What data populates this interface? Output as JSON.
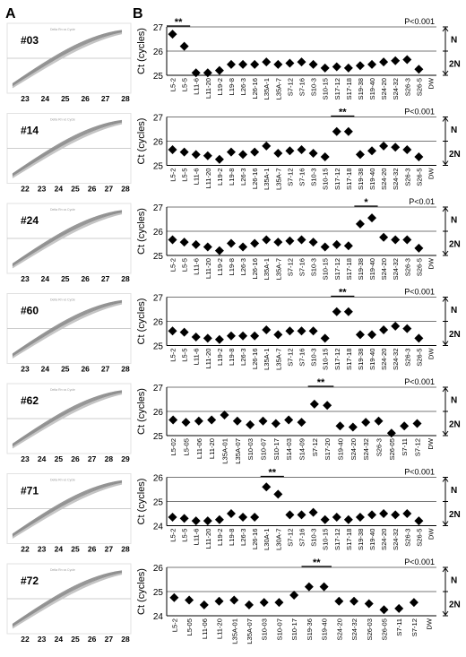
{
  "panel_labels": {
    "left": "A",
    "right": "B"
  },
  "samples": [
    {
      "id": "#03",
      "thumb_ticks": [
        "23",
        "24",
        "25",
        "26",
        "27",
        "28"
      ]
    },
    {
      "id": "#14",
      "thumb_ticks": [
        "22",
        "23",
        "24",
        "25",
        "26",
        "27",
        "28"
      ]
    },
    {
      "id": "#24",
      "thumb_ticks": [
        "23",
        "24",
        "25",
        "26",
        "27",
        "28"
      ]
    },
    {
      "id": "#60",
      "thumb_ticks": [
        "23",
        "24",
        "25",
        "26",
        "27",
        "28"
      ]
    },
    {
      "id": "#62",
      "thumb_ticks": [
        "23",
        "24",
        "25",
        "26",
        "27",
        "28",
        "29"
      ]
    },
    {
      "id": "#71",
      "thumb_ticks": [
        "22",
        "23",
        "24",
        "25",
        "26",
        "27",
        "28"
      ]
    },
    {
      "id": "#72",
      "thumb_ticks": [
        "22",
        "23",
        "24",
        "25",
        "26",
        "27",
        "28"
      ]
    }
  ],
  "chart_data": [
    {
      "type": "scatter",
      "sample": "#03",
      "ylabel": "Ct (cycles)",
      "ylim": [
        25,
        27
      ],
      "yticks": [
        "25",
        "26",
        "27"
      ],
      "p_value": "P<0.001",
      "significance": [
        {
          "mark": "**",
          "from": 0,
          "to": 1
        }
      ],
      "copy_labels": [
        "N",
        "2N"
      ],
      "categories": [
        "L5-2",
        "L5-5",
        "L11-6",
        "L11-20",
        "L19-2",
        "L19-8",
        "L26-3",
        "L26-16",
        "L35A-1",
        "L35A-7",
        "S7-12",
        "S7-16",
        "S10-3",
        "S10-15",
        "S17-12",
        "S17-18",
        "S19-38",
        "S19-40",
        "S24-20",
        "S24-32",
        "S26-3",
        "S26-5",
        "DW"
      ],
      "values": [
        26.7,
        26.2,
        25.1,
        25.1,
        25.2,
        25.45,
        25.45,
        25.45,
        25.55,
        25.45,
        25.5,
        25.55,
        25.45,
        25.3,
        25.35,
        25.3,
        25.4,
        25.45,
        25.55,
        25.6,
        25.65,
        25.25,
        null
      ]
    },
    {
      "type": "scatter",
      "sample": "#14",
      "ylabel": "Ct (cycles)",
      "ylim": [
        25,
        27
      ],
      "yticks": [
        "25",
        "26",
        "27"
      ],
      "p_value": "P<0.001",
      "significance": [
        {
          "mark": "**",
          "from": 14,
          "to": 15
        }
      ],
      "copy_labels": [
        "N",
        "2N"
      ],
      "categories": [
        "L5-2",
        "L5-5",
        "L11-6",
        "L11-20",
        "L19-2",
        "L19-8",
        "L26-3",
        "L26-16",
        "L35A-1",
        "L35A-7",
        "S7-12",
        "S7-16",
        "S10-3",
        "S10-15",
        "S17-12",
        "S17-18",
        "S19-38",
        "S19-40",
        "S24-20",
        "S24-32",
        "S26-3",
        "S26-5",
        "DW"
      ],
      "values": [
        25.65,
        25.55,
        25.45,
        25.4,
        25.25,
        25.55,
        25.45,
        25.55,
        25.8,
        25.5,
        25.6,
        25.65,
        25.5,
        25.35,
        26.4,
        26.4,
        25.45,
        25.6,
        25.8,
        25.75,
        25.65,
        25.35,
        null
      ]
    },
    {
      "type": "scatter",
      "sample": "#24",
      "ylabel": "Ct (cycles)",
      "ylim": [
        25,
        27
      ],
      "yticks": [
        "25",
        "26",
        "27"
      ],
      "p_value": "P<0.01",
      "significance": [
        {
          "mark": "*",
          "from": 16,
          "to": 17
        }
      ],
      "copy_labels": [
        "N",
        "2N"
      ],
      "categories": [
        "L5-2",
        "L5-5",
        "L11-6",
        "L11-20",
        "L19-2",
        "L19-8",
        "L26-3",
        "L26-16",
        "L35A-1",
        "L35A-7",
        "S7-12",
        "S7-16",
        "S10-3",
        "S10-15",
        "S17-12",
        "S17-18",
        "S19-38",
        "S19-40",
        "S24-20",
        "S24-32",
        "S26-3",
        "S26-5",
        "DW"
      ],
      "values": [
        25.65,
        25.55,
        25.45,
        25.35,
        25.2,
        25.5,
        25.35,
        25.5,
        25.65,
        25.55,
        25.6,
        25.65,
        25.55,
        25.35,
        25.45,
        25.4,
        26.3,
        26.55,
        25.75,
        25.65,
        25.65,
        25.3,
        null
      ]
    },
    {
      "type": "scatter",
      "sample": "#60",
      "ylabel": "Ct (cycles)",
      "ylim": [
        25,
        27
      ],
      "yticks": [
        "25",
        "26",
        "27"
      ],
      "p_value": "P<0.001",
      "significance": [
        {
          "mark": "**",
          "from": 14,
          "to": 15
        }
      ],
      "copy_labels": [
        "N",
        "2N"
      ],
      "categories": [
        "L5-2",
        "L5-5",
        "L11-6",
        "L11-20",
        "L19-2",
        "L19-8",
        "L26-3",
        "L26-16",
        "L35A-1",
        "L35A-7",
        "S7-12",
        "S7-16",
        "S10-3",
        "S10-15",
        "S17-12",
        "S17-18",
        "S19-38",
        "S19-40",
        "S24-20",
        "S24-32",
        "S26-3",
        "S26-5",
        "DW"
      ],
      "values": [
        25.6,
        25.55,
        25.35,
        25.3,
        25.25,
        25.4,
        25.4,
        25.4,
        25.65,
        25.45,
        25.6,
        25.6,
        25.6,
        25.3,
        26.4,
        26.4,
        25.45,
        25.45,
        25.65,
        25.8,
        25.7,
        25.3,
        null
      ]
    },
    {
      "type": "scatter",
      "sample": "#62",
      "ylabel": "Ct (cycles)",
      "ylim": [
        25,
        27
      ],
      "yticks": [
        "25",
        "26",
        "27"
      ],
      "p_value": "P<0.001",
      "significance": [
        {
          "mark": "**",
          "from": 11,
          "to": 12
        }
      ],
      "copy_labels": [
        "N",
        "2N"
      ],
      "categories": [
        "L5-02",
        "L5-05",
        "L11-06",
        "L11-20",
        "L35A-01",
        "L35A-07",
        "S10-03",
        "S10-07",
        "S10-17",
        "S14-03",
        "S14-09",
        "S7-12",
        "S17-20",
        "S19-40",
        "S24-20",
        "S24-32",
        "S26-3",
        "S26-05",
        "S7-11",
        "S7-12",
        "DW"
      ],
      "values": [
        25.65,
        25.55,
        25.6,
        25.65,
        25.85,
        25.6,
        25.45,
        25.6,
        25.5,
        25.65,
        25.55,
        26.3,
        26.25,
        25.4,
        25.35,
        25.55,
        25.6,
        25.1,
        25.4,
        25.5,
        null
      ]
    },
    {
      "type": "scatter",
      "sample": "#71",
      "ylabel": "Ct (cycles)",
      "ylim": [
        24,
        26
      ],
      "yticks": [
        "24",
        "25",
        "26"
      ],
      "p_value": "P<0.001",
      "significance": [
        {
          "mark": "**",
          "from": 8,
          "to": 9
        }
      ],
      "copy_labels": [
        "N",
        "2N"
      ],
      "categories": [
        "L5-2",
        "L5-5",
        "L11-6",
        "L11-20",
        "L19-2",
        "L19-8",
        "L26-3",
        "L26-16",
        "L30A-1",
        "L30A-7",
        "S7-12",
        "S7-16",
        "S10-3",
        "S10-15",
        "S17-12",
        "S17-18",
        "S19-38",
        "S19-40",
        "S24-20",
        "S24-32",
        "S26-3",
        "S26-5",
        "DW"
      ],
      "values": [
        24.35,
        24.3,
        24.2,
        24.2,
        24.25,
        24.5,
        24.35,
        24.35,
        25.6,
        25.3,
        24.45,
        24.45,
        24.55,
        24.25,
        24.35,
        24.25,
        24.35,
        24.45,
        24.5,
        24.45,
        24.5,
        24.2,
        null
      ]
    },
    {
      "type": "scatter",
      "sample": "#72",
      "ylabel": "Ct (cycles)",
      "ylim": [
        24,
        26
      ],
      "yticks": [
        "24",
        "25",
        "26"
      ],
      "p_value": "P<0.001",
      "significance": [
        {
          "mark": "**",
          "from": 9,
          "to": 10
        }
      ],
      "copy_labels": [
        "N",
        "2N"
      ],
      "categories": [
        "L5-2",
        "L5-05",
        "L11-06",
        "L11-20",
        "L35A-01",
        "L35A-07",
        "S10-03",
        "S10-07",
        "S10-17",
        "S19-36",
        "S19-40",
        "S24-20",
        "S24-32",
        "S26-03",
        "S26-05",
        "S7-11",
        "S7-12",
        "DW"
      ],
      "values": [
        24.75,
        24.65,
        24.45,
        24.6,
        24.65,
        24.45,
        24.55,
        24.55,
        24.85,
        25.2,
        25.2,
        24.6,
        24.6,
        24.5,
        24.25,
        24.3,
        24.55,
        null
      ]
    }
  ]
}
